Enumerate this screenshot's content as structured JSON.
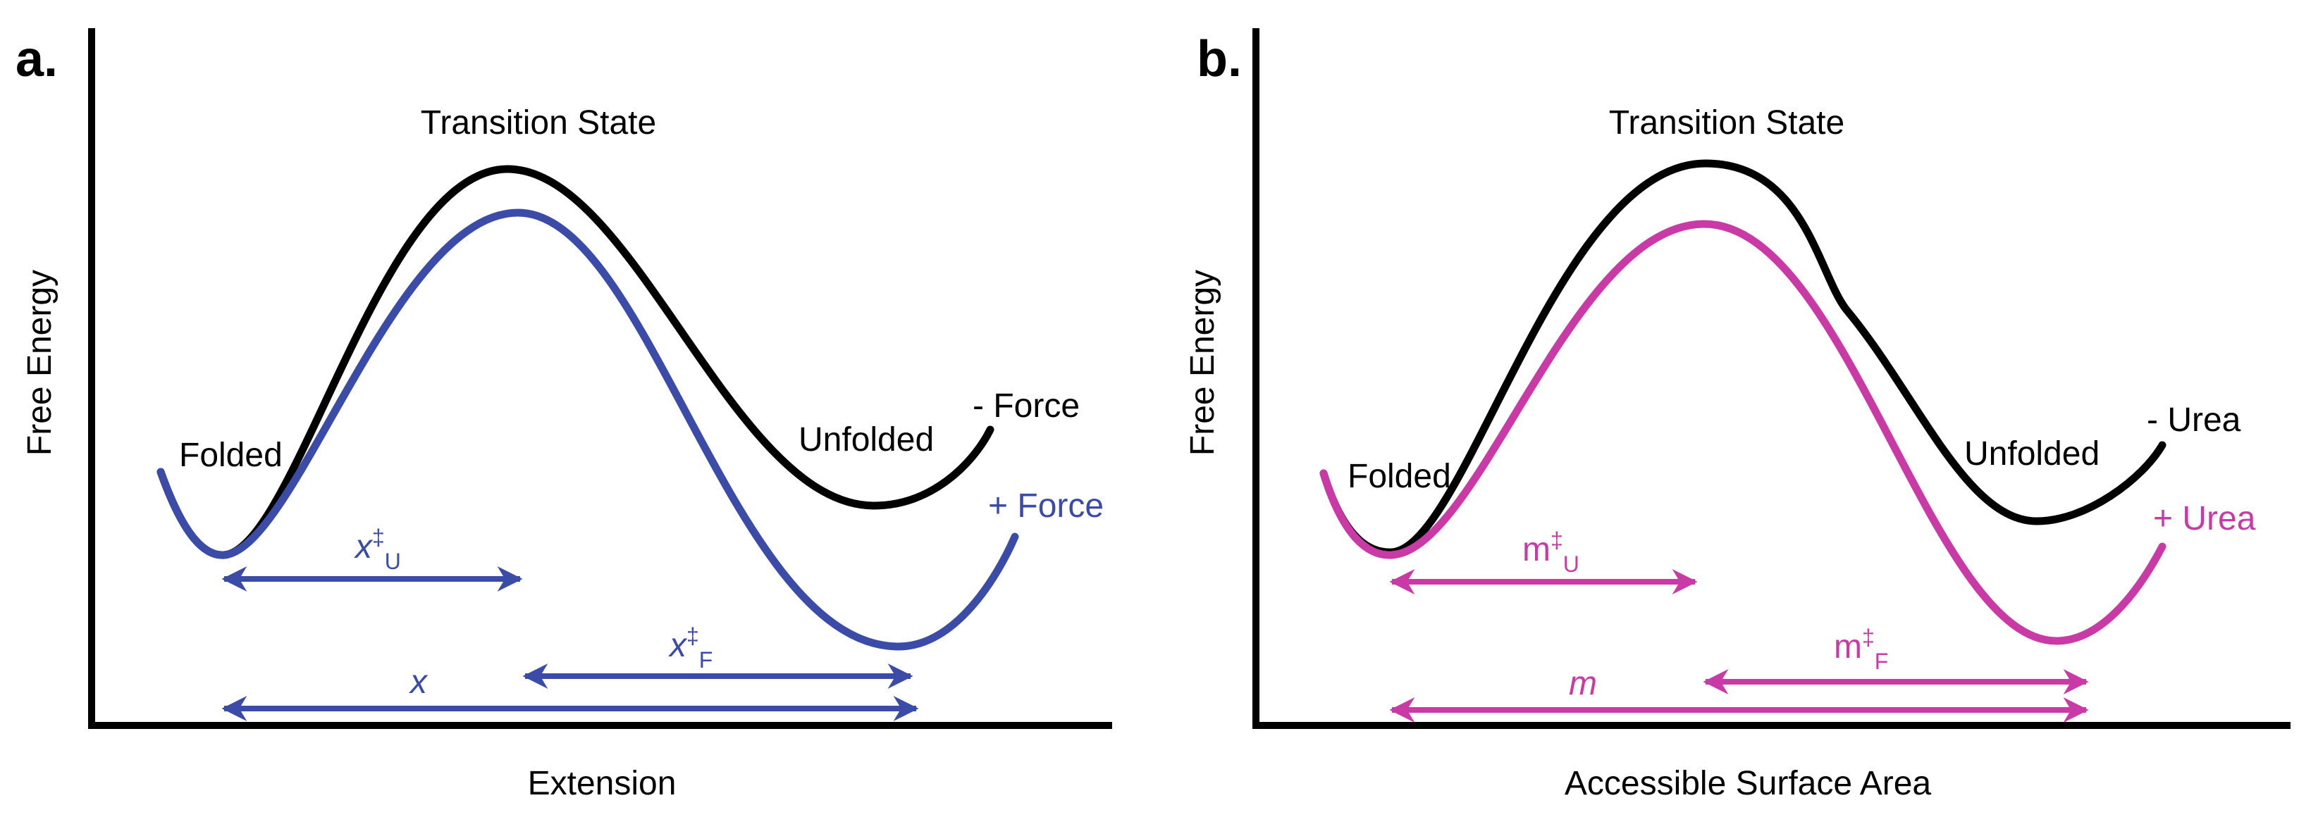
{
  "colors": {
    "axis": "#000000",
    "baseline_curve": "#000000",
    "force_curve": "#3b4ba8",
    "urea_curve": "#c93aa7"
  },
  "panels": [
    {
      "letter": "a.",
      "y_axis_label": "Free Energy",
      "x_axis_label": "Extension",
      "transition_label": "Transition State",
      "folded_label": "Folded",
      "unfolded_label": "Unfolded",
      "minus_label": "- Force",
      "plus_label": "+ Force",
      "arrow_short_left": {
        "base": "x",
        "sup": "‡",
        "sub": "U"
      },
      "arrow_short_right": {
        "base": "x",
        "sup": "‡",
        "sub": "F"
      },
      "arrow_long": {
        "base": "x"
      },
      "accent": "force_curve"
    },
    {
      "letter": "b.",
      "y_axis_label": "Free Energy",
      "x_axis_label": "Accessible Surface Area",
      "transition_label": "Transition State",
      "folded_label": "Folded",
      "unfolded_label": "Unfolded",
      "minus_label": "- Urea",
      "plus_label": "+ Urea",
      "arrow_short_left": {
        "base": "m",
        "sup": "‡",
        "sub": "U"
      },
      "arrow_short_right": {
        "base": "m",
        "sup": "‡",
        "sub": "F"
      },
      "arrow_long": {
        "base": "m"
      },
      "accent": "urea_curve"
    }
  ]
}
